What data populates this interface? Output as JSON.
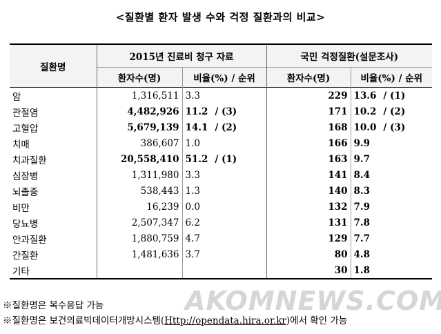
{
  "title": "<질환별 환자 발생 수와 걱정 질환과의 비교>",
  "header": {
    "col_name": "질환명",
    "group1": "2015년 진료비 청구 자료",
    "group2": "국민 걱정질환(설문조사)",
    "sub_patients": "환자수(명)",
    "sub_ratio": "비율(%) / 순위"
  },
  "rows": [
    {
      "name": "암",
      "p1": "1,316,511",
      "r1": "3.3",
      "k1": "",
      "b1": false,
      "p2": "229",
      "r2": "13.6",
      "k2": "/ (1)"
    },
    {
      "name": "관절염",
      "p1": "4,482,926",
      "r1": "11.2",
      "k1": "/ (3)",
      "b1": true,
      "p2": "171",
      "r2": "10.2",
      "k2": "/ (2)"
    },
    {
      "name": "고혈압",
      "p1": "5,679,139",
      "r1": "14.1",
      "k1": "/ (2)",
      "b1": true,
      "p2": "168",
      "r2": "10.0",
      "k2": "/ (3)"
    },
    {
      "name": "치매",
      "p1": "386,607",
      "r1": "1.0",
      "k1": "",
      "b1": false,
      "p2": "166",
      "r2": "9.9",
      "k2": ""
    },
    {
      "name": "치과질환",
      "p1": "20,558,410",
      "r1": "51.2",
      "k1": "/ (1)",
      "b1": true,
      "p2": "163",
      "r2": "9.7",
      "k2": ""
    },
    {
      "name": "심장병",
      "p1": "1,311,980",
      "r1": "3.3",
      "k1": "",
      "b1": false,
      "p2": "141",
      "r2": "8.4",
      "k2": ""
    },
    {
      "name": "뇌졸중",
      "p1": "538,443",
      "r1": "1.3",
      "k1": "",
      "b1": false,
      "p2": "140",
      "r2": "8.3",
      "k2": ""
    },
    {
      "name": "비만",
      "p1": "16,239",
      "r1": "0.0",
      "k1": "",
      "b1": false,
      "p2": "132",
      "r2": "7.9",
      "k2": ""
    },
    {
      "name": "당뇨병",
      "p1": "2,507,347",
      "r1": "6.2",
      "k1": "",
      "b1": false,
      "p2": "131",
      "r2": "7.8",
      "k2": ""
    },
    {
      "name": "안과질환",
      "p1": "1,880,759",
      "r1": "4.7",
      "k1": "",
      "b1": false,
      "p2": "129",
      "r2": "7.7",
      "k2": ""
    },
    {
      "name": "간질환",
      "p1": "1,481,636",
      "r1": "3.7",
      "k1": "",
      "b1": false,
      "p2": "80",
      "r2": "4.8",
      "k2": ""
    },
    {
      "name": "기타",
      "p1": "",
      "r1": "",
      "k1": "",
      "b1": false,
      "p2": "30",
      "r2": "1.8",
      "k2": ""
    }
  ],
  "notes": [
    "※질환명은 복수응답 가능",
    "※질환명은 보건의료빅데이터개방시스템(",
    "Http://opendata.hira.or.kr",
    ")에서 확인 가능"
  ],
  "watermark": "AKOMNEWS.COM"
}
